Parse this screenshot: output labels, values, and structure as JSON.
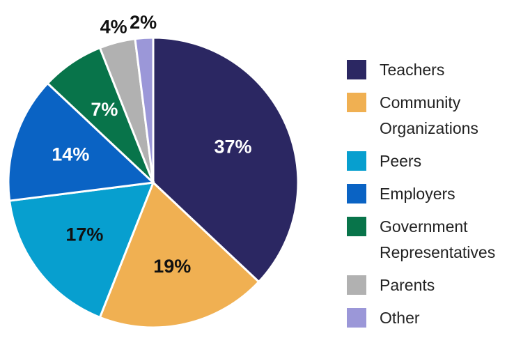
{
  "chart_data": {
    "type": "pie",
    "categories": [
      "Teachers",
      "Community Organizations",
      "Peers",
      "Employers",
      "Government Representatives",
      "Parents",
      "Other"
    ],
    "values": [
      37,
      19,
      17,
      14,
      7,
      4,
      2
    ],
    "value_labels": [
      "37%",
      "19%",
      "17%",
      "14%",
      "7%",
      "4%",
      "2%"
    ],
    "colors": [
      "#2b2762",
      "#f0b052",
      "#079fcf",
      "#0a63c4",
      "#08744a",
      "#b1b1b1",
      "#9b97d8"
    ],
    "legend": "right"
  }
}
